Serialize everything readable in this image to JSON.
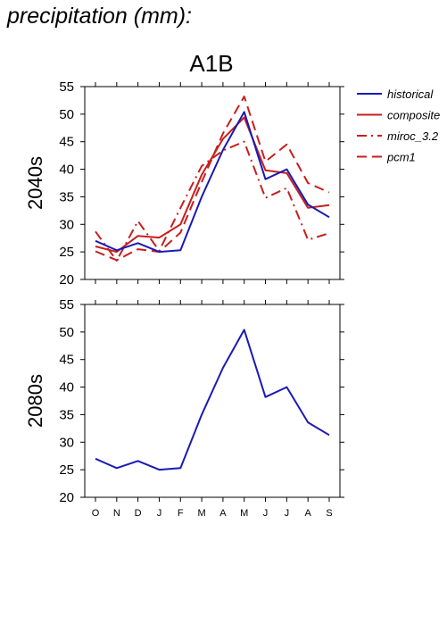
{
  "page_title": "precipitation (mm):",
  "colors": {
    "historical": "#1a1ab4",
    "composite": "#c81e1e"
  },
  "chart_data": [
    {
      "type": "line",
      "title": "A1B",
      "ylabel": "2040s",
      "xlabel": "",
      "categories": [
        "O",
        "N",
        "D",
        "J",
        "F",
        "M",
        "A",
        "M",
        "J",
        "J",
        "A",
        "S"
      ],
      "ylim": [
        20,
        55
      ],
      "yticks": [
        20,
        25,
        30,
        35,
        40,
        45,
        50,
        55
      ],
      "grid": false,
      "legend": "right",
      "series": [
        {
          "name": "historical",
          "style": "solid",
          "color": "#1a1ab4",
          "values": [
            27.0,
            25.3,
            26.6,
            25.0,
            25.3,
            35.0,
            43.5,
            50.4,
            38.2,
            40.0,
            33.6,
            31.3
          ]
        },
        {
          "name": "composite",
          "style": "solid",
          "color": "#c81e1e",
          "values": [
            26.0,
            25.0,
            27.9,
            27.6,
            30.0,
            39.0,
            45.5,
            49.4,
            39.8,
            39.3,
            33.0,
            33.5
          ]
        },
        {
          "name": "miroc_3.2",
          "style": "dashdot",
          "color": "#c81e1e",
          "values": [
            28.7,
            23.4,
            30.6,
            25.2,
            33.0,
            40.6,
            43.4,
            45.0,
            34.8,
            36.6,
            27.2,
            28.4
          ]
        },
        {
          "name": "pcm1",
          "style": "dashed",
          "color": "#c81e1e",
          "values": [
            25.1,
            23.5,
            25.5,
            25.0,
            28.5,
            37.7,
            46.5,
            53.2,
            41.4,
            44.5,
            37.5,
            35.8
          ]
        }
      ]
    },
    {
      "type": "line",
      "title": "",
      "ylabel": "2080s",
      "xlabel": "",
      "categories": [
        "O",
        "N",
        "D",
        "J",
        "F",
        "M",
        "A",
        "M",
        "J",
        "J",
        "A",
        "S"
      ],
      "ylim": [
        20,
        55
      ],
      "yticks": [
        20,
        25,
        30,
        35,
        40,
        45,
        50,
        55
      ],
      "grid": false,
      "series": [
        {
          "name": "historical",
          "style": "solid",
          "color": "#1a1ab4",
          "values": [
            27.0,
            25.3,
            26.6,
            25.0,
            25.3,
            35.0,
            43.5,
            50.4,
            38.2,
            40.0,
            33.6,
            31.3
          ]
        }
      ]
    }
  ]
}
